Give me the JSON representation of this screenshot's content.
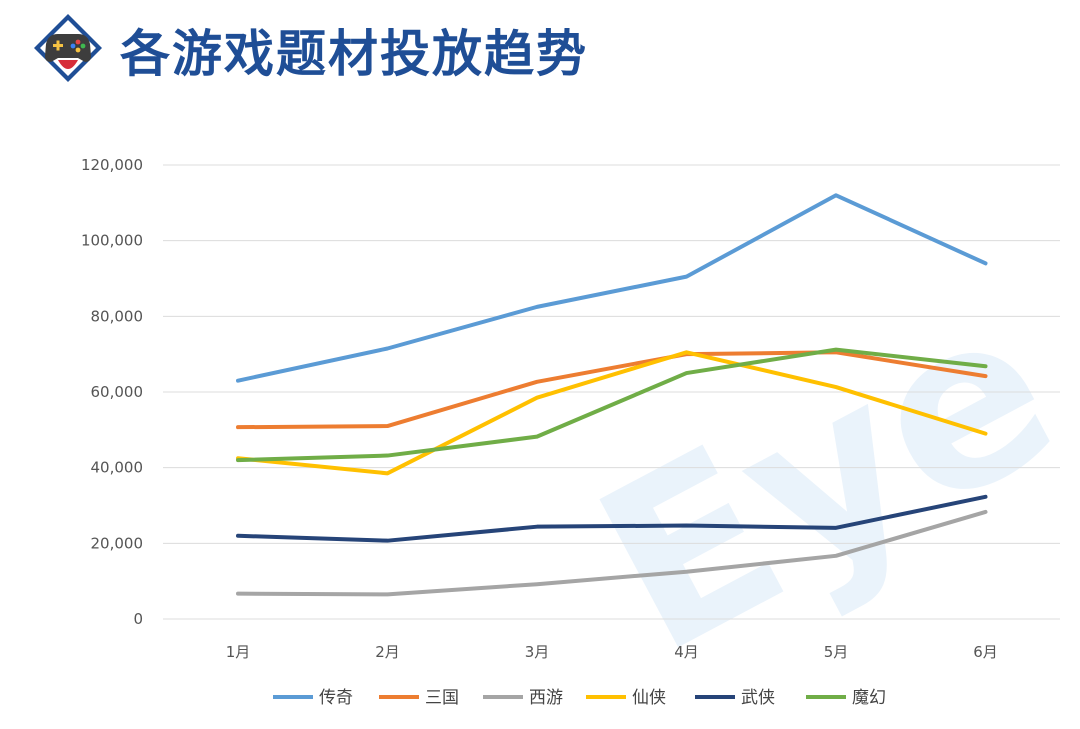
{
  "header": {
    "title": "各游戏题材投放趋势"
  },
  "chart_data": {
    "type": "line",
    "title": "各游戏题材投放趋势",
    "categories": [
      "1月",
      "2月",
      "3月",
      "4月",
      "5月",
      "6月"
    ],
    "ylim": [
      0,
      120000
    ],
    "yticks": [
      0,
      20000,
      40000,
      60000,
      80000,
      100000,
      120000
    ],
    "ytick_labels": [
      "0",
      "20,000",
      "40,000",
      "60,000",
      "80,000",
      "100,000",
      "120,000"
    ],
    "grid": true,
    "legend_position": "bottom",
    "series": [
      {
        "name": "传奇",
        "color": "#5b9bd5",
        "values": [
          63000,
          71500,
          82500,
          90500,
          112000,
          94000
        ]
      },
      {
        "name": "三国",
        "color": "#ed7d31",
        "values": [
          50700,
          51000,
          62700,
          70000,
          70500,
          64200
        ]
      },
      {
        "name": "西游",
        "color": "#a5a5a5",
        "values": [
          6700,
          6500,
          9200,
          12500,
          16700,
          28300
        ]
      },
      {
        "name": "仙侠",
        "color": "#ffc000",
        "values": [
          42500,
          38500,
          58500,
          70500,
          61300,
          49000
        ]
      },
      {
        "name": "武侠",
        "color": "#264478",
        "values": [
          22000,
          20700,
          24400,
          24700,
          24100,
          32300
        ]
      },
      {
        "name": "魔幻",
        "color": "#70ad47",
        "values": [
          42000,
          43200,
          48200,
          65000,
          71200,
          66800
        ]
      }
    ]
  }
}
